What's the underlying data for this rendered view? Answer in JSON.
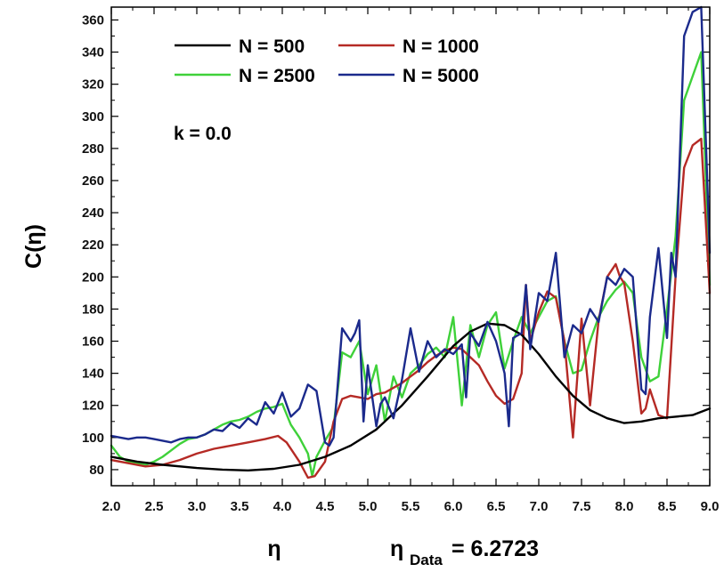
{
  "chart_data": {
    "type": "line",
    "xlabel": "η",
    "ylabel": "C(η)",
    "xlim": [
      2.0,
      9.0
    ],
    "ylim": [
      70,
      368
    ],
    "xticks": [
      "2.0",
      "2.5",
      "3.0",
      "3.5",
      "4.0",
      "4.5",
      "5.0",
      "5.5",
      "6.0",
      "6.5",
      "7.0",
      "7.5",
      "8.0",
      "8.5",
      "9.0"
    ],
    "yticks": [
      "80",
      "100",
      "120",
      "140",
      "160",
      "180",
      "200",
      "220",
      "240",
      "260",
      "280",
      "300",
      "320",
      "340",
      "360"
    ],
    "annotation": "k = 0.0",
    "footer": {
      "eta": "η",
      "eta_data_main": "η",
      "eta_data_sub": "Data",
      "eta_data_value": "= 6.2723"
    },
    "legend_position": "top-left",
    "grid": false,
    "series": [
      {
        "name": "N = 500",
        "color": "#000000",
        "x": [
          2.0,
          2.3,
          2.6,
          3.0,
          3.3,
          3.6,
          3.9,
          4.2,
          4.5,
          4.8,
          5.1,
          5.4,
          5.7,
          6.0,
          6.2,
          6.4,
          6.6,
          6.8,
          7.0,
          7.2,
          7.4,
          7.6,
          7.8,
          8.0,
          8.2,
          8.4,
          8.6,
          8.8,
          9.0
        ],
        "y": [
          88,
          85,
          83,
          81,
          80,
          79.5,
          80.5,
          83,
          88,
          95,
          105,
          120,
          138,
          157,
          166,
          171,
          170,
          164,
          152,
          138,
          126,
          117,
          112,
          109,
          110,
          112,
          113,
          114,
          118
        ]
      },
      {
        "name": "N = 1000",
        "color": "#b52a25",
        "x": [
          2.0,
          2.2,
          2.4,
          2.6,
          2.8,
          3.0,
          3.2,
          3.4,
          3.6,
          3.8,
          3.95,
          4.05,
          4.2,
          4.3,
          4.38,
          4.5,
          4.6,
          4.7,
          4.8,
          4.9,
          5.0,
          5.1,
          5.2,
          5.3,
          5.4,
          5.5,
          5.6,
          5.7,
          5.8,
          5.9,
          6.0,
          6.1,
          6.2,
          6.3,
          6.4,
          6.5,
          6.6,
          6.7,
          6.8,
          6.85,
          6.9,
          7.0,
          7.1,
          7.2,
          7.3,
          7.4,
          7.5,
          7.6,
          7.7,
          7.8,
          7.9,
          7.95,
          8.0,
          8.1,
          8.2,
          8.25,
          8.3,
          8.4,
          8.5,
          8.6,
          8.7,
          8.8,
          8.9,
          9.0
        ],
        "y": [
          86,
          84,
          82,
          83,
          86,
          90,
          93,
          95,
          97,
          99,
          101,
          97,
          85,
          75,
          76,
          85,
          110,
          124,
          126,
          125,
          124,
          127,
          128,
          131,
          134,
          138,
          142,
          147,
          151,
          154,
          156,
          155,
          150,
          145,
          135,
          126,
          121,
          124,
          140,
          195,
          160,
          178,
          191,
          187,
          160,
          100,
          174,
          120,
          173,
          200,
          208,
          200,
          196,
          160,
          115,
          118,
          130,
          114,
          112,
          200,
          268,
          282,
          286,
          190
        ]
      },
      {
        "name": "N = 2500",
        "color": "#3fd13a",
        "x": [
          2.0,
          2.1,
          2.2,
          2.3,
          2.4,
          2.5,
          2.6,
          2.7,
          2.8,
          2.9,
          3.0,
          3.1,
          3.2,
          3.3,
          3.4,
          3.5,
          3.6,
          3.7,
          3.8,
          3.9,
          4.0,
          4.1,
          4.2,
          4.3,
          4.35,
          4.4,
          4.5,
          4.6,
          4.7,
          4.8,
          4.9,
          5.0,
          5.1,
          5.2,
          5.3,
          5.4,
          5.5,
          5.6,
          5.7,
          5.8,
          5.9,
          6.0,
          6.1,
          6.2,
          6.3,
          6.4,
          6.5,
          6.6,
          6.7,
          6.8,
          6.9,
          7.0,
          7.1,
          7.2,
          7.3,
          7.4,
          7.5,
          7.6,
          7.7,
          7.8,
          7.9,
          8.0,
          8.1,
          8.2,
          8.3,
          8.4,
          8.5,
          8.6,
          8.7,
          8.8,
          8.9,
          9.0
        ],
        "y": [
          95,
          88,
          85,
          84,
          83,
          85,
          88,
          92,
          96,
          99,
          100,
          102,
          105,
          108,
          110,
          111,
          113,
          116,
          118,
          119,
          121,
          108,
          100,
          90,
          76,
          88,
          98,
          107,
          153,
          150,
          160,
          127,
          145,
          110,
          138,
          125,
          140,
          145,
          152,
          156,
          150,
          175,
          120,
          170,
          150,
          170,
          178,
          143,
          160,
          175,
          165,
          175,
          185,
          188,
          160,
          140,
          142,
          160,
          175,
          185,
          192,
          197,
          190,
          150,
          135,
          138,
          180,
          225,
          310,
          325,
          340,
          195
        ]
      },
      {
        "name": "N = 5000",
        "color": "#1b2a8c",
        "x": [
          2.0,
          2.1,
          2.2,
          2.3,
          2.4,
          2.5,
          2.6,
          2.7,
          2.8,
          2.9,
          3.0,
          3.1,
          3.2,
          3.3,
          3.4,
          3.5,
          3.6,
          3.7,
          3.8,
          3.9,
          4.0,
          4.1,
          4.2,
          4.3,
          4.4,
          4.5,
          4.55,
          4.6,
          4.7,
          4.8,
          4.85,
          4.9,
          4.95,
          5.0,
          5.1,
          5.15,
          5.2,
          5.3,
          5.4,
          5.5,
          5.6,
          5.7,
          5.8,
          5.9,
          6.0,
          6.1,
          6.15,
          6.2,
          6.3,
          6.4,
          6.5,
          6.6,
          6.65,
          6.7,
          6.8,
          6.85,
          6.9,
          7.0,
          7.1,
          7.2,
          7.3,
          7.4,
          7.5,
          7.6,
          7.7,
          7.8,
          7.9,
          8.0,
          8.1,
          8.2,
          8.25,
          8.3,
          8.4,
          8.45,
          8.5,
          8.55,
          8.6,
          8.7,
          8.8,
          8.9,
          9.0
        ],
        "y": [
          101,
          100,
          99,
          100,
          100,
          99,
          98,
          97,
          99,
          100,
          100,
          102,
          105,
          104,
          109,
          106,
          112,
          108,
          122,
          115,
          128,
          113,
          118,
          133,
          129,
          97,
          95,
          100,
          168,
          160,
          165,
          173,
          110,
          145,
          107,
          121,
          125,
          112,
          136,
          168,
          141,
          160,
          150,
          155,
          152,
          158,
          125,
          165,
          157,
          172,
          160,
          140,
          107,
          162,
          165,
          195,
          155,
          190,
          185,
          215,
          150,
          170,
          165,
          180,
          172,
          200,
          195,
          205,
          200,
          130,
          127,
          175,
          218,
          190,
          162,
          215,
          200,
          350,
          365,
          368,
          215
        ]
      }
    ]
  }
}
